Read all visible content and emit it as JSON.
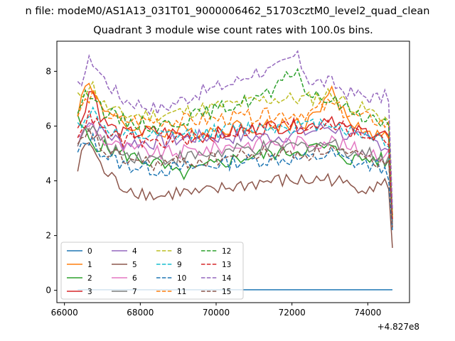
{
  "figure": {
    "suptitle": "n file: modeM0/AS1A13_031T01_9000006462_51703cztM0_level2_quad_clean"
  },
  "chart_data": {
    "type": "line",
    "title": "Quadrant 3 module wise count rates with 100.0s bins.",
    "xlabel": "",
    "ylabel": "",
    "x_offset_label": "+4.827e8",
    "xlim": [
      65800,
      75100
    ],
    "ylim": [
      -0.45,
      9.1
    ],
    "xticks": [
      66000,
      68000,
      70000,
      72000,
      74000
    ],
    "yticks": [
      0,
      2,
      4,
      6,
      8
    ],
    "grid": false,
    "legend": {
      "placement": "lower-left",
      "ncol": 4
    },
    "x_start": 66350,
    "x_end": 74650,
    "n_points": 84,
    "series": [
      {
        "name": "0",
        "color": "#1f77b4",
        "dashed": false,
        "anchors": [
          [
            66350,
            0.02
          ],
          [
            74650,
            0.02
          ]
        ]
      },
      {
        "name": "1",
        "color": "#ff7f0e",
        "dashed": false,
        "anchors": [
          [
            66350,
            6.6
          ],
          [
            66600,
            7.6
          ],
          [
            67000,
            6.8
          ],
          [
            67500,
            6.0
          ],
          [
            68500,
            5.8
          ],
          [
            69500,
            5.8
          ],
          [
            70500,
            6.0
          ],
          [
            71500,
            6.0
          ],
          [
            72500,
            6.2
          ],
          [
            73000,
            7.3
          ],
          [
            73500,
            6.2
          ],
          [
            74300,
            5.6
          ],
          [
            74550,
            5.8
          ],
          [
            74650,
            2.6
          ]
        ]
      },
      {
        "name": "2",
        "color": "#2ca02c",
        "dashed": false,
        "anchors": [
          [
            66350,
            6.2
          ],
          [
            66700,
            5.4
          ],
          [
            67500,
            5.0
          ],
          [
            68500,
            4.6
          ],
          [
            69000,
            4.2
          ],
          [
            69500,
            4.4
          ],
          [
            70500,
            4.8
          ],
          [
            71500,
            5.0
          ],
          [
            72500,
            5.2
          ],
          [
            73000,
            5.2
          ],
          [
            73500,
            4.8
          ],
          [
            74300,
            4.8
          ],
          [
            74550,
            4.6
          ],
          [
            74650,
            2.4
          ]
        ]
      },
      {
        "name": "3",
        "color": "#d62728",
        "dashed": false,
        "anchors": [
          [
            66350,
            5.8
          ],
          [
            66700,
            7.5
          ],
          [
            67000,
            6.2
          ],
          [
            67500,
            5.7
          ],
          [
            68500,
            5.8
          ],
          [
            69500,
            5.6
          ],
          [
            70500,
            5.8
          ],
          [
            71500,
            6.0
          ],
          [
            72500,
            6.0
          ],
          [
            73000,
            6.4
          ],
          [
            73500,
            5.8
          ],
          [
            74300,
            5.8
          ],
          [
            74550,
            5.6
          ],
          [
            74650,
            2.6
          ]
        ]
      },
      {
        "name": "4",
        "color": "#9467bd",
        "dashed": false,
        "anchors": [
          [
            66350,
            5.6
          ],
          [
            66600,
            6.2
          ],
          [
            67000,
            5.8
          ],
          [
            67500,
            5.4
          ],
          [
            68500,
            5.4
          ],
          [
            69500,
            5.6
          ],
          [
            70500,
            5.6
          ],
          [
            71500,
            5.6
          ],
          [
            72500,
            5.8
          ],
          [
            73000,
            6.0
          ],
          [
            73500,
            5.6
          ],
          [
            74300,
            5.4
          ],
          [
            74550,
            5.2
          ],
          [
            74650,
            2.5
          ]
        ]
      },
      {
        "name": "5",
        "color": "#8c564b",
        "dashed": false,
        "anchors": [
          [
            66350,
            4.4
          ],
          [
            66600,
            5.6
          ],
          [
            67000,
            4.4
          ],
          [
            67500,
            3.8
          ],
          [
            68500,
            3.4
          ],
          [
            69000,
            3.6
          ],
          [
            69500,
            3.5
          ],
          [
            70500,
            3.8
          ],
          [
            71500,
            4.0
          ],
          [
            72500,
            4.0
          ],
          [
            73000,
            4.1
          ],
          [
            73500,
            3.8
          ],
          [
            74300,
            3.8
          ],
          [
            74550,
            3.9
          ],
          [
            74650,
            1.55
          ]
        ]
      },
      {
        "name": "6",
        "color": "#e377c2",
        "dashed": false,
        "anchors": [
          [
            66350,
            5.4
          ],
          [
            66700,
            6.2
          ],
          [
            67000,
            5.5
          ],
          [
            67500,
            5.2
          ],
          [
            68500,
            5.0
          ],
          [
            69500,
            5.1
          ],
          [
            70500,
            5.3
          ],
          [
            71500,
            5.4
          ],
          [
            72500,
            5.4
          ],
          [
            73000,
            5.5
          ],
          [
            73500,
            5.2
          ],
          [
            74300,
            5.0
          ],
          [
            74550,
            4.9
          ],
          [
            74650,
            2.4
          ]
        ]
      },
      {
        "name": "7",
        "color": "#7f7f7f",
        "dashed": false,
        "anchors": [
          [
            66350,
            5.5
          ],
          [
            66700,
            6.0
          ],
          [
            67000,
            5.4
          ],
          [
            67500,
            5.0
          ],
          [
            68500,
            4.8
          ],
          [
            69500,
            4.9
          ],
          [
            70500,
            5.1
          ],
          [
            71500,
            5.2
          ],
          [
            72500,
            5.3
          ],
          [
            73000,
            5.4
          ],
          [
            73500,
            5.1
          ],
          [
            74300,
            4.9
          ],
          [
            74550,
            4.8
          ],
          [
            74650,
            2.3
          ]
        ]
      },
      {
        "name": "8",
        "color": "#bcbd22",
        "dashed": true,
        "anchors": [
          [
            66350,
            7.0
          ],
          [
            66700,
            7.6
          ],
          [
            67000,
            6.8
          ],
          [
            67500,
            6.4
          ],
          [
            68500,
            6.4
          ],
          [
            69500,
            6.6
          ],
          [
            70500,
            6.8
          ],
          [
            71500,
            7.0
          ],
          [
            72500,
            7.0
          ],
          [
            73000,
            7.2
          ],
          [
            73500,
            6.8
          ],
          [
            74300,
            6.4
          ],
          [
            74550,
            6.2
          ],
          [
            74650,
            2.7
          ]
        ]
      },
      {
        "name": "9",
        "color": "#17becf",
        "dashed": true,
        "anchors": [
          [
            66350,
            6.0
          ],
          [
            66700,
            6.6
          ],
          [
            67000,
            6.0
          ],
          [
            67500,
            5.6
          ],
          [
            68500,
            5.6
          ],
          [
            69500,
            5.7
          ],
          [
            70500,
            5.9
          ],
          [
            71500,
            6.0
          ],
          [
            72500,
            6.0
          ],
          [
            73000,
            6.2
          ],
          [
            73500,
            5.8
          ],
          [
            74300,
            5.6
          ],
          [
            74550,
            5.4
          ],
          [
            74650,
            2.5
          ]
        ]
      },
      {
        "name": "10",
        "color": "#1f77b4",
        "dashed": true,
        "anchors": [
          [
            66350,
            5.0
          ],
          [
            66700,
            5.6
          ],
          [
            67000,
            5.0
          ],
          [
            67500,
            4.6
          ],
          [
            68500,
            4.4
          ],
          [
            69500,
            4.5
          ],
          [
            70500,
            4.7
          ],
          [
            71500,
            4.8
          ],
          [
            72500,
            4.8
          ],
          [
            73000,
            5.0
          ],
          [
            73500,
            4.7
          ],
          [
            74300,
            4.5
          ],
          [
            74550,
            4.3
          ],
          [
            74650,
            2.2
          ]
        ]
      },
      {
        "name": "11",
        "color": "#ff7f0e",
        "dashed": true,
        "anchors": [
          [
            66350,
            6.4
          ],
          [
            66700,
            7.2
          ],
          [
            67000,
            6.5
          ],
          [
            67500,
            6.2
          ],
          [
            68500,
            6.2
          ],
          [
            69500,
            6.2
          ],
          [
            70500,
            6.3
          ],
          [
            71500,
            6.4
          ],
          [
            72500,
            6.5
          ],
          [
            73000,
            6.8
          ],
          [
            73500,
            6.4
          ],
          [
            74300,
            6.2
          ],
          [
            74550,
            6.0
          ],
          [
            74650,
            2.7
          ]
        ]
      },
      {
        "name": "12",
        "color": "#2ca02c",
        "dashed": true,
        "anchors": [
          [
            66350,
            6.6
          ],
          [
            66700,
            7.4
          ],
          [
            67000,
            6.6
          ],
          [
            67500,
            6.2
          ],
          [
            68500,
            6.0
          ],
          [
            69500,
            6.4
          ],
          [
            70500,
            6.8
          ],
          [
            71500,
            7.2
          ],
          [
            72100,
            8.1
          ],
          [
            72500,
            7.0
          ],
          [
            73000,
            7.0
          ],
          [
            73500,
            6.6
          ],
          [
            74300,
            6.2
          ],
          [
            74550,
            6.0
          ],
          [
            74650,
            2.7
          ]
        ]
      },
      {
        "name": "13",
        "color": "#d62728",
        "dashed": true,
        "anchors": [
          [
            66350,
            5.8
          ],
          [
            66700,
            6.4
          ],
          [
            67000,
            5.8
          ],
          [
            67500,
            5.5
          ],
          [
            68500,
            5.4
          ],
          [
            69500,
            5.6
          ],
          [
            70500,
            5.8
          ],
          [
            71500,
            6.0
          ],
          [
            72500,
            6.0
          ],
          [
            73000,
            6.2
          ],
          [
            73500,
            5.8
          ],
          [
            74300,
            5.6
          ],
          [
            74550,
            5.4
          ],
          [
            74650,
            2.6
          ]
        ]
      },
      {
        "name": "14",
        "color": "#9467bd",
        "dashed": true,
        "anchors": [
          [
            66350,
            7.4
          ],
          [
            66700,
            8.5
          ],
          [
            67000,
            7.8
          ],
          [
            67500,
            7.0
          ],
          [
            68500,
            6.6
          ],
          [
            69500,
            7.2
          ],
          [
            70500,
            7.6
          ],
          [
            71000,
            8.0
          ],
          [
            71500,
            8.0
          ],
          [
            72100,
            8.6
          ],
          [
            72500,
            7.6
          ],
          [
            73000,
            7.6
          ],
          [
            73500,
            7.2
          ],
          [
            74300,
            7.0
          ],
          [
            74550,
            7.1
          ],
          [
            74650,
            3.0
          ]
        ]
      },
      {
        "name": "15",
        "color": "#8c564b",
        "dashed": true,
        "anchors": [
          [
            66350,
            5.2
          ],
          [
            66700,
            5.8
          ],
          [
            67000,
            5.1
          ],
          [
            67500,
            4.8
          ],
          [
            68500,
            4.6
          ],
          [
            69500,
            4.7
          ],
          [
            70500,
            4.9
          ],
          [
            71500,
            5.0
          ],
          [
            72500,
            5.0
          ],
          [
            73000,
            5.2
          ],
          [
            73500,
            4.9
          ],
          [
            74300,
            4.7
          ],
          [
            74550,
            4.5
          ],
          [
            74650,
            2.3
          ]
        ]
      }
    ]
  }
}
